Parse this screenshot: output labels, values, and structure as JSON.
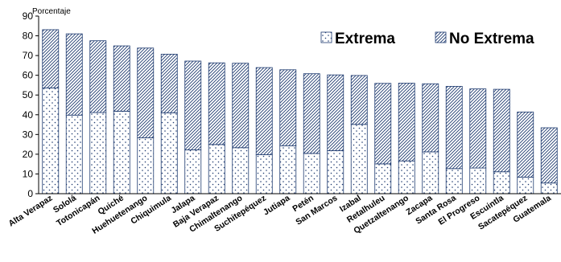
{
  "chart_data": {
    "type": "bar",
    "stacked": true,
    "ylabel": "Porcentaje",
    "ylim": [
      0,
      90
    ],
    "yticks": [
      0,
      10,
      20,
      30,
      40,
      50,
      60,
      70,
      80,
      90
    ],
    "grid": false,
    "legend_position": "top-right",
    "categories": [
      "Alta Verapaz",
      "Sololá",
      "Totonicapán",
      "Quiché",
      "Huehuetenango",
      "Chiquimula",
      "Jalapa",
      "Baja Verapaz",
      "Chimaltenango",
      "Suchitepéquez",
      "Jutiapa",
      "Petén",
      "San Marcos",
      "Izabal",
      "Retalhuleu",
      "Quetzaltenango",
      "Zacapa",
      "Santa Rosa",
      "El Progreso",
      "Escuintla",
      "Sacatepéquez",
      "Guatemala"
    ],
    "series": [
      {
        "name": "Extrema",
        "pattern": "dots",
        "values": [
          53.6,
          39.8,
          41.1,
          41.8,
          28.3,
          41.0,
          22.2,
          24.9,
          23.3,
          19.8,
          24.3,
          20.4,
          21.8,
          35.1,
          15.1,
          16.6,
          21.2,
          12.7,
          13.0,
          11.1,
          8.4,
          5.4
        ]
      },
      {
        "name": "No Extrema",
        "pattern": "diagonal-hatch",
        "values": [
          29.5,
          41.2,
          36.4,
          33.1,
          45.5,
          29.7,
          45.0,
          41.4,
          42.8,
          44.1,
          38.5,
          40.4,
          38.4,
          24.8,
          40.8,
          39.4,
          34.5,
          41.7,
          40.1,
          41.8,
          33.0,
          28.0
        ]
      }
    ],
    "colors": {
      "fill": "#ffffff",
      "pattern": "#1f3b70",
      "axis": "#000000"
    }
  }
}
